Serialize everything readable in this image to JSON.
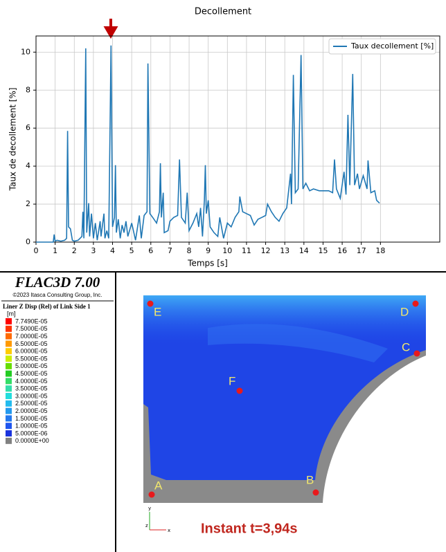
{
  "chart_data": {
    "type": "line",
    "title": "Decollement",
    "xlabel": "Temps [s]",
    "ylabel": "Taux de decollement [%]",
    "x": [
      0.0,
      0.9,
      0.95,
      1.0,
      1.1,
      1.3,
      1.5,
      1.6,
      1.65,
      1.7,
      1.8,
      1.9,
      2.0,
      2.2,
      2.4,
      2.45,
      2.5,
      2.6,
      2.65,
      2.75,
      2.8,
      2.9,
      3.0,
      3.1,
      3.2,
      3.35,
      3.4,
      3.55,
      3.6,
      3.7,
      3.8,
      3.92,
      4.0,
      4.1,
      4.15,
      4.2,
      4.3,
      4.4,
      4.5,
      4.6,
      4.7,
      4.8,
      5.0,
      5.2,
      5.4,
      5.5,
      5.65,
      5.8,
      5.85,
      5.95,
      6.1,
      6.3,
      6.45,
      6.5,
      6.55,
      6.65,
      6.7,
      6.9,
      7.0,
      7.2,
      7.4,
      7.5,
      7.6,
      7.8,
      7.9,
      8.0,
      8.2,
      8.4,
      8.5,
      8.6,
      8.7,
      8.8,
      8.85,
      8.9,
      9.0,
      9.1,
      9.3,
      9.5,
      9.6,
      9.8,
      10.0,
      10.2,
      10.4,
      10.6,
      10.65,
      10.8,
      11.0,
      11.2,
      11.4,
      11.6,
      11.8,
      12.0,
      12.1,
      12.3,
      12.5,
      12.7,
      12.9,
      13.1,
      13.3,
      13.35,
      13.45,
      13.55,
      13.7,
      13.85,
      13.95,
      14.1,
      14.3,
      14.5,
      14.8,
      15.0,
      15.3,
      15.5,
      15.6,
      15.7,
      15.9,
      16.1,
      16.2,
      16.3,
      16.4,
      16.55,
      16.65,
      16.8,
      16.9,
      17.1,
      17.3,
      17.35,
      17.5,
      17.7,
      17.8,
      17.95
    ],
    "series": [
      {
        "name": "Taux decollement [%]",
        "color": "#1f77b4",
        "values": [
          0,
          0,
          0.4,
          0.05,
          0.1,
          0.05,
          0.1,
          0.2,
          5.85,
          0.8,
          0.7,
          0.1,
          0.05,
          0.1,
          0.3,
          1.6,
          0.2,
          10.2,
          0.5,
          2.05,
          0.3,
          1.5,
          0.2,
          1.0,
          0.1,
          1.1,
          0.3,
          1.5,
          0.2,
          0.6,
          0.2,
          10.35,
          0.8,
          1.3,
          4.05,
          0.5,
          1.2,
          0.2,
          0.9,
          0.5,
          1.1,
          0.3,
          1.0,
          0.1,
          1.4,
          0.2,
          1.4,
          1.6,
          9.4,
          1.5,
          1.3,
          1.0,
          1.6,
          4.15,
          1.3,
          2.6,
          0.5,
          0.6,
          1.1,
          1.3,
          1.4,
          4.35,
          1.3,
          1.0,
          2.6,
          0.6,
          1.0,
          1.5,
          0.8,
          1.8,
          0.3,
          2.2,
          4.05,
          1.5,
          2.2,
          0.8,
          0.5,
          0.3,
          1.3,
          0.2,
          1.0,
          0.8,
          1.3,
          1.6,
          2.4,
          1.6,
          1.5,
          1.4,
          0.9,
          1.2,
          1.3,
          1.4,
          2.0,
          1.6,
          1.3,
          1.1,
          1.5,
          1.8,
          3.6,
          2.0,
          8.8,
          2.6,
          2.8,
          9.85,
          2.8,
          3.1,
          2.7,
          2.8,
          2.7,
          2.7,
          2.7,
          2.6,
          4.35,
          2.8,
          2.3,
          3.7,
          2.5,
          6.7,
          3.0,
          8.85,
          3.0,
          3.6,
          2.8,
          3.5,
          2.8,
          4.3,
          2.6,
          2.7,
          2.2,
          2.05
        ]
      }
    ],
    "xlim": [
      0,
      21.1
    ],
    "ylim": [
      0,
      10.85
    ],
    "xticks": [
      0,
      1,
      2,
      3,
      4,
      5,
      6,
      7,
      8,
      9,
      10,
      11,
      12,
      13,
      14,
      15,
      16,
      17,
      18
    ],
    "yticks": [
      0,
      2,
      4,
      6,
      8,
      10
    ],
    "grid": true,
    "legend": "upper right"
  },
  "panel": {
    "title": "FLAC3D 7.00",
    "copyright": "©2023 Itasca Consulting Group, Inc.",
    "quantity": "Liner Z Disp (Rel) of Link Side 1",
    "unit": "[m]",
    "legend": [
      {
        "label": "7.7490E-05",
        "color": "#ff0000"
      },
      {
        "label": "7.5000E-05",
        "color": "#ff3300"
      },
      {
        "label": "7.0000E-05",
        "color": "#ff6a00"
      },
      {
        "label": "6.5000E-05",
        "color": "#ff9900"
      },
      {
        "label": "6.0000E-05",
        "color": "#ffcc00"
      },
      {
        "label": "5.5000E-05",
        "color": "#ccee00"
      },
      {
        "label": "5.0000E-05",
        "color": "#66dd00"
      },
      {
        "label": "4.5000E-05",
        "color": "#22cc22"
      },
      {
        "label": "4.0000E-05",
        "color": "#33dd66"
      },
      {
        "label": "3.5000E-05",
        "color": "#33ddaa"
      },
      {
        "label": "3.0000E-05",
        "color": "#22dddd"
      },
      {
        "label": "2.5000E-05",
        "color": "#22bbee"
      },
      {
        "label": "2.0000E-05",
        "color": "#2299ee"
      },
      {
        "label": "1.5000E-05",
        "color": "#2277ee"
      },
      {
        "label": "1.0000E-05",
        "color": "#1f55ee"
      },
      {
        "label": "5.0000E-06",
        "color": "#1a33dd"
      },
      {
        "label": "0.0000E+00",
        "color": "#808080"
      }
    ],
    "points": [
      "A",
      "B",
      "C",
      "D",
      "E",
      "F"
    ],
    "axes": [
      "y",
      "z",
      "x"
    ],
    "instant": "Instant t=3,94s"
  }
}
